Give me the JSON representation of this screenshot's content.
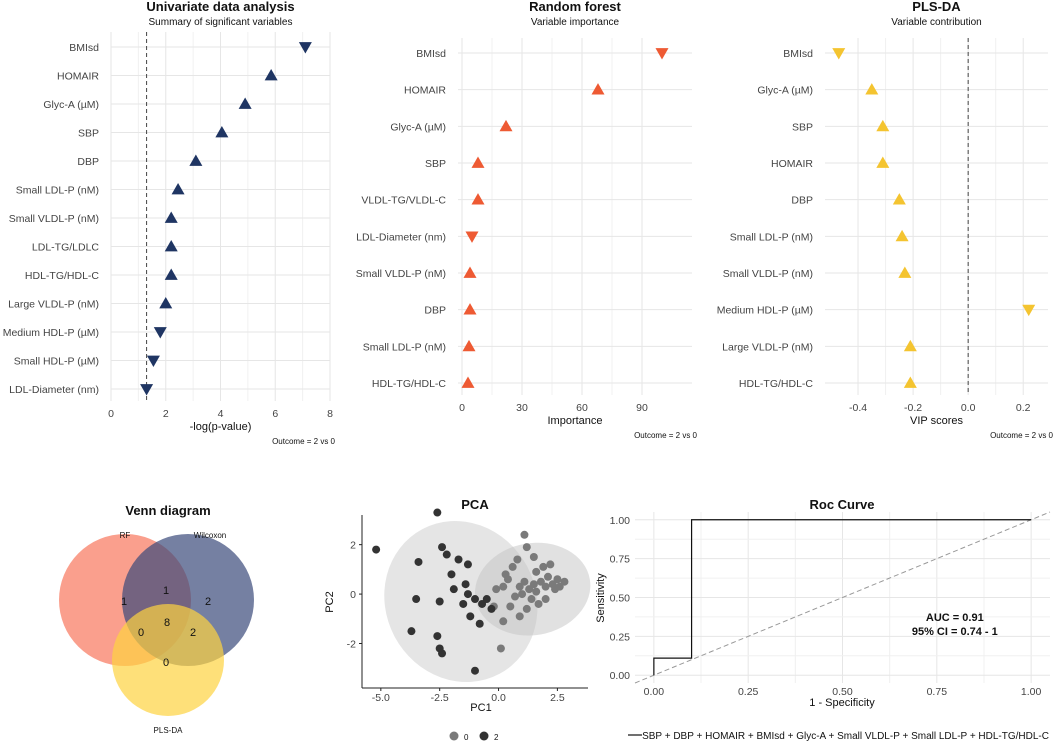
{
  "chart_data": [
    {
      "type": "scatter",
      "id": "univariate",
      "title": "Univariate data analysis",
      "subtitle": "Summary of significant variables",
      "xlabel": "-log(p-value)",
      "xlim": [
        0,
        8
      ],
      "xticks": [
        0,
        2,
        4,
        6,
        8
      ],
      "reference_line": 1.3,
      "caption": "Outcome = 2 vs 0",
      "color": "#1f3563",
      "points": [
        {
          "label": "BMIsd",
          "value": 7.1,
          "direction": "down"
        },
        {
          "label": "HOMAIR",
          "value": 5.85,
          "direction": "up"
        },
        {
          "label": "Glyc-A (µM)",
          "value": 4.9,
          "direction": "up"
        },
        {
          "label": "SBP",
          "value": 4.05,
          "direction": "up"
        },
        {
          "label": "DBP",
          "value": 3.1,
          "direction": "up"
        },
        {
          "label": "Small LDL-P (nM)",
          "value": 2.45,
          "direction": "up"
        },
        {
          "label": "Small VLDL-P (nM)",
          "value": 2.2,
          "direction": "up"
        },
        {
          "label": "LDL-TG/LDLC",
          "value": 2.2,
          "direction": "up"
        },
        {
          "label": "HDL-TG/HDL-C",
          "value": 2.2,
          "direction": "up"
        },
        {
          "label": "Large VLDL-P (nM)",
          "value": 2.0,
          "direction": "up"
        },
        {
          "label": "Medium HDL-P (µM)",
          "value": 1.8,
          "direction": "down"
        },
        {
          "label": "Small HDL-P (µM)",
          "value": 1.55,
          "direction": "down"
        },
        {
          "label": "LDL-Diameter (nm)",
          "value": 1.3,
          "direction": "down"
        }
      ]
    },
    {
      "type": "scatter",
      "id": "randomforest",
      "title": "Random forest",
      "subtitle": "Variable importance",
      "xlabel": "Importance",
      "xlim": [
        -2,
        115
      ],
      "xticks": [
        0,
        30,
        60,
        90
      ],
      "caption": "Outcome = 2 vs 0",
      "color": "#ee5a33",
      "points": [
        {
          "label": "BMIsd",
          "value": 100,
          "direction": "down"
        },
        {
          "label": "HOMAIR",
          "value": 68,
          "direction": "up"
        },
        {
          "label": "Glyc-A (µM)",
          "value": 22,
          "direction": "up"
        },
        {
          "label": "SBP",
          "value": 8,
          "direction": "up"
        },
        {
          "label": "VLDL-TG/VLDL-C",
          "value": 8,
          "direction": "up"
        },
        {
          "label": "LDL-Diameter (nm)",
          "value": 5,
          "direction": "down"
        },
        {
          "label": "Small VLDL-P (nM)",
          "value": 4,
          "direction": "up"
        },
        {
          "label": "DBP",
          "value": 4,
          "direction": "up"
        },
        {
          "label": "Small LDL-P (nM)",
          "value": 3.5,
          "direction": "up"
        },
        {
          "label": "HDL-TG/HDL-C",
          "value": 3,
          "direction": "up"
        }
      ]
    },
    {
      "type": "scatter",
      "id": "plsda",
      "title": "PLS-DA",
      "subtitle": "Variable contribution",
      "xlabel": "VIP scores",
      "xlim": [
        -0.52,
        0.29
      ],
      "xticks": [
        -0.4,
        -0.2,
        0.0,
        0.2
      ],
      "xtick_labels": [
        "-0.4",
        "-0.2",
        "0.0",
        "0.2"
      ],
      "reference_line": 0.0,
      "caption": "Outcome = 2 vs 0",
      "color": "#f4c430",
      "points": [
        {
          "label": "BMIsd",
          "value": -0.47,
          "direction": "down"
        },
        {
          "label": "Glyc-A (µM)",
          "value": -0.35,
          "direction": "up"
        },
        {
          "label": "SBP",
          "value": -0.31,
          "direction": "up"
        },
        {
          "label": "HOMAIR",
          "value": -0.31,
          "direction": "up"
        },
        {
          "label": "DBP",
          "value": -0.25,
          "direction": "up"
        },
        {
          "label": "Small LDL-P (nM)",
          "value": -0.24,
          "direction": "up"
        },
        {
          "label": "Small VLDL-P (nM)",
          "value": -0.23,
          "direction": "up"
        },
        {
          "label": "Medium HDL-P (µM)",
          "value": 0.22,
          "direction": "down"
        },
        {
          "label": "Large VLDL-P (nM)",
          "value": -0.21,
          "direction": "up"
        },
        {
          "label": "HDL-TG/HDL-C",
          "value": -0.21,
          "direction": "up"
        }
      ]
    },
    {
      "type": "venn",
      "id": "venn",
      "title": "Venn diagram",
      "sets": [
        {
          "name": "RF",
          "color": "#f8765c"
        },
        {
          "name": "Wilcoxon",
          "color": "#3b4a7a"
        },
        {
          "name": "PLS-DA",
          "color": "#fdd340"
        }
      ],
      "regions": {
        "rf_only": "1",
        "wilcoxon_only": "2",
        "plsda_only": "0",
        "rf_wilcoxon": "1",
        "rf_plsda": "0",
        "wilcoxon_plsda": "2",
        "all": "8"
      }
    },
    {
      "type": "scatter",
      "id": "pca",
      "title": "PCA",
      "xlabel": "PC1",
      "ylabel": "PC2",
      "xlim": [
        -5.8,
        3.8
      ],
      "ylim": [
        -3.8,
        3.2
      ],
      "xticks": [
        -5.0,
        -2.5,
        0.0,
        2.5
      ],
      "xtick_labels": [
        "-5.0",
        "-2.5",
        "0.0",
        "2.5"
      ],
      "yticks": [
        -2,
        0,
        2
      ],
      "legend": [
        {
          "name": "0",
          "color": "#7a7a7a"
        },
        {
          "name": "2",
          "color": "#333333"
        }
      ],
      "series": [
        {
          "name": "0",
          "color": "#7a7a7a",
          "points": [
            [
              0.4,
              0.6
            ],
            [
              0.7,
              -0.1
            ],
            [
              0.9,
              0.3
            ],
            [
              1.1,
              0.5
            ],
            [
              1.3,
              0.2
            ],
            [
              1.5,
              0.4
            ],
            [
              1.6,
              0.9
            ],
            [
              1.8,
              0.5
            ],
            [
              2.0,
              0.3
            ],
            [
              2.1,
              0.7
            ],
            [
              2.3,
              0.4
            ],
            [
              2.5,
              0.6
            ],
            [
              2.6,
              0.3
            ],
            [
              2.8,
              0.5
            ],
            [
              1.4,
              -0.2
            ],
            [
              1.7,
              -0.4
            ],
            [
              1.2,
              -0.6
            ],
            [
              0.5,
              -0.5
            ],
            [
              0.3,
              0.8
            ],
            [
              0.9,
              -0.9
            ],
            [
              1.1,
              2.4
            ],
            [
              1.2,
              1.9
            ],
            [
              1.5,
              1.5
            ],
            [
              1.9,
              1.1
            ],
            [
              2.2,
              1.2
            ],
            [
              0.6,
              1.1
            ],
            [
              0.8,
              1.4
            ],
            [
              -0.2,
              -0.5
            ],
            [
              0.2,
              -1.1
            ],
            [
              0.1,
              -2.2
            ],
            [
              -0.1,
              0.2
            ],
            [
              2.0,
              -0.2
            ],
            [
              1.0,
              0.0
            ],
            [
              1.6,
              0.1
            ],
            [
              2.4,
              0.2
            ],
            [
              0.2,
              0.3
            ]
          ]
        },
        {
          "name": "2",
          "color": "#333333",
          "points": [
            [
              -2.6,
              3.3
            ],
            [
              -2.4,
              1.9
            ],
            [
              -2.2,
              1.6
            ],
            [
              -1.7,
              1.4
            ],
            [
              -2.0,
              0.8
            ],
            [
              -1.3,
              1.2
            ],
            [
              -1.4,
              0.4
            ],
            [
              -3.4,
              1.3
            ],
            [
              -3.5,
              -0.2
            ],
            [
              -3.7,
              -1.5
            ],
            [
              -5.2,
              1.8
            ],
            [
              -2.6,
              -1.7
            ],
            [
              -2.4,
              -2.4
            ],
            [
              -1.0,
              -3.1
            ],
            [
              -1.0,
              -0.2
            ],
            [
              -0.7,
              -0.4
            ],
            [
              -1.2,
              -0.9
            ],
            [
              -0.8,
              -1.2
            ],
            [
              -2.5,
              -0.3
            ],
            [
              -1.5,
              -0.4
            ],
            [
              -0.5,
              -0.2
            ],
            [
              -0.3,
              -0.6
            ],
            [
              -1.3,
              0.0
            ],
            [
              -1.9,
              0.2
            ],
            [
              -2.5,
              -2.2
            ]
          ]
        }
      ],
      "ellipses": [
        {
          "group": "0",
          "color": "#cccccc"
        },
        {
          "group": "2",
          "color": "#d8d8d8"
        }
      ]
    },
    {
      "type": "line",
      "id": "roc",
      "title": "Roc Curve",
      "xlabel": "1 - Specificity",
      "ylabel": "Sensitivity",
      "xlim": [
        -0.05,
        1.05
      ],
      "ylim": [
        -0.05,
        1.05
      ],
      "xticks": [
        0.0,
        0.25,
        0.5,
        0.75,
        1.0
      ],
      "xtick_labels": [
        "0.00",
        "0.25",
        "0.50",
        "0.75",
        "1.00"
      ],
      "yticks": [
        0.0,
        0.25,
        0.5,
        0.75,
        1.0
      ],
      "ytick_labels": [
        "0.00",
        "0.25",
        "0.50",
        "0.75",
        "1.00"
      ],
      "roc_points": [
        [
          0,
          0
        ],
        [
          0,
          0.11
        ],
        [
          0.1,
          0.11
        ],
        [
          0.1,
          1.0
        ],
        [
          1.0,
          1.0
        ]
      ],
      "annotation": [
        "AUC = 0.91",
        "95% CI = 0.74 - 1"
      ],
      "annotation_at": [
        0.75,
        0.35
      ],
      "legend": "SBP + DBP + HOMAIR + BMIsd + Glyc-A + Small VLDL-P + Small LDL-P + HDL-TG/HDL-C"
    }
  ]
}
